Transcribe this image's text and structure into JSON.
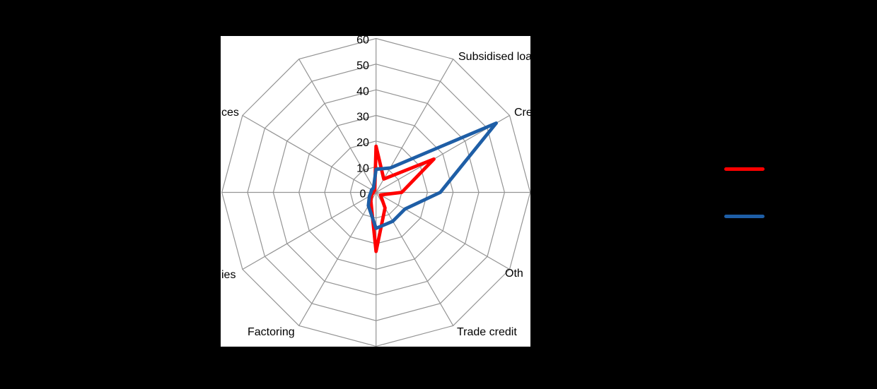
{
  "chart_data": {
    "type": "radar",
    "axes_count": 12,
    "radial_max": 60,
    "radial_ticks": [
      0,
      10,
      20,
      30,
      40,
      50,
      60
    ],
    "grid_color": "#949494",
    "plot_background": "#ffffff",
    "visible_axis_labels": [
      {
        "text": "Subsidised loa"
      },
      {
        "text": "Cre"
      },
      {
        "text": "Oth"
      },
      {
        "text": "Trade credit"
      },
      {
        "text": "Factoring"
      },
      {
        "text": "ies"
      },
      {
        "text": "ces"
      }
    ],
    "series": [
      {
        "key": "red-series",
        "color": "#ff0000",
        "values": [
          18,
          6,
          26,
          10,
          2,
          7,
          23,
          4,
          2,
          1,
          1,
          1
        ]
      },
      {
        "key": "blue-series",
        "color": "#1e5ea6",
        "values": [
          9,
          11,
          54,
          25,
          13,
          13,
          14,
          6,
          3,
          2,
          2,
          2
        ]
      }
    ]
  },
  "legend": {
    "items": [
      {
        "key": "red-series",
        "color": "#ff0000"
      },
      {
        "key": "blue-series",
        "color": "#1e5ea6"
      }
    ]
  }
}
